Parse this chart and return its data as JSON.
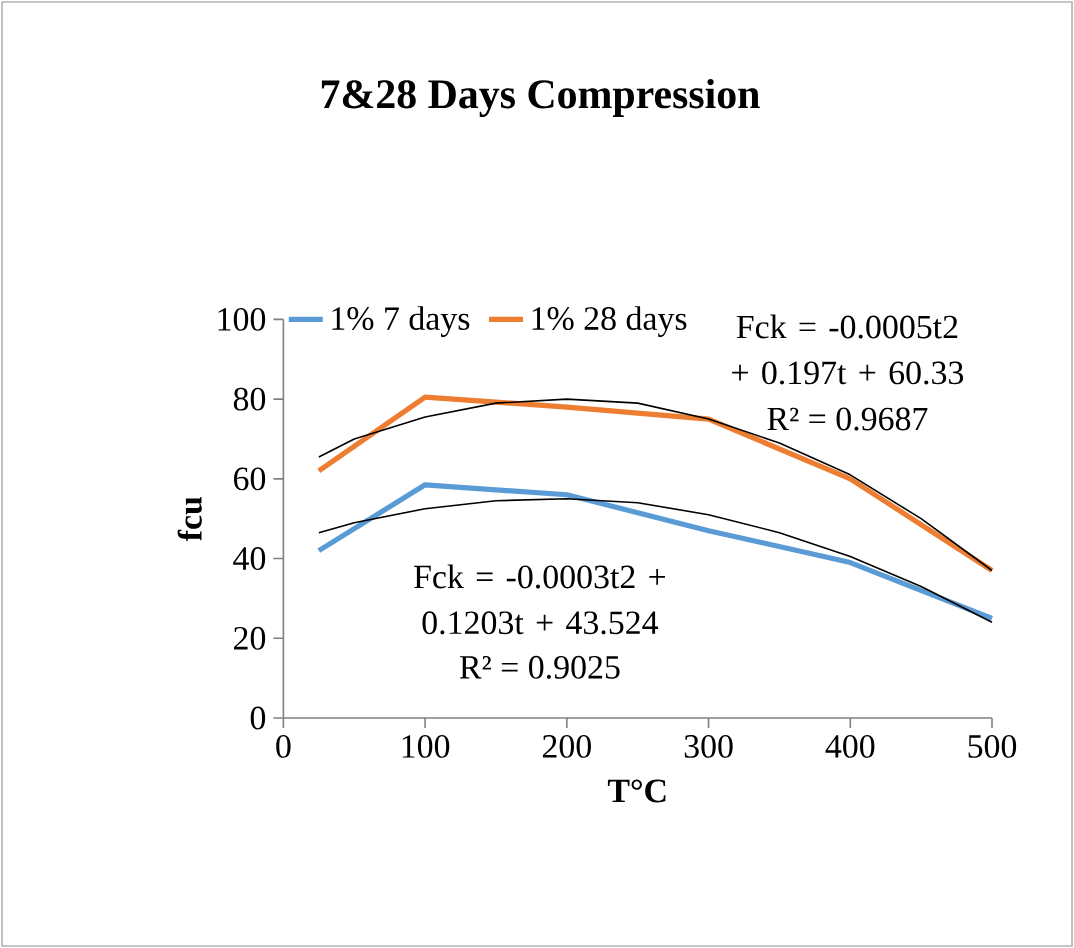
{
  "chart_data": {
    "type": "line",
    "title": "7&28 Days Compression",
    "xlabel": "T°C",
    "ylabel": "fcu",
    "xlim": [
      0,
      500
    ],
    "xticks": [
      0,
      100,
      200,
      300,
      400,
      500
    ],
    "ylim": [
      0,
      100
    ],
    "yticks": [
      0,
      20,
      40,
      60,
      80,
      100
    ],
    "grid": false,
    "legend": "top",
    "marker": "none",
    "line_style": "solid",
    "series": [
      {
        "name": "1% 7 days",
        "color": "#5b9bd5",
        "x": [
          25,
          100,
          200,
          300,
          400,
          500
        ],
        "values": [
          42,
          58.5,
          56,
          47,
          39,
          25
        ]
      },
      {
        "name": "1% 28 days",
        "color": "#ed7d31",
        "x": [
          25,
          100,
          200,
          300,
          400,
          500
        ],
        "values": [
          62,
          80.5,
          78,
          75,
          60,
          37
        ]
      },
      {
        "color": "#000000",
        "x": [
          25,
          50,
          100,
          150,
          200,
          250,
          300,
          350,
          400,
          450,
          500
        ],
        "values": [
          65.5,
          70,
          75.5,
          79,
          80,
          79,
          75,
          69,
          61,
          50,
          37
        ]
      },
      {
        "color": "#000000",
        "x": [
          25,
          50,
          100,
          150,
          200,
          250,
          300,
          350,
          400,
          450,
          500
        ],
        "values": [
          46.5,
          49,
          52.5,
          54.5,
          55,
          54,
          51,
          46.5,
          40.5,
          33,
          24
        ]
      }
    ],
    "annotations": [
      "Fck = -0.0005t2 + 0.197t + 60.33",
      "R² = 0.9687",
      "Fck = -0.0003t2 + 0.1203t + 43.524",
      "R² = 0.9025"
    ]
  }
}
